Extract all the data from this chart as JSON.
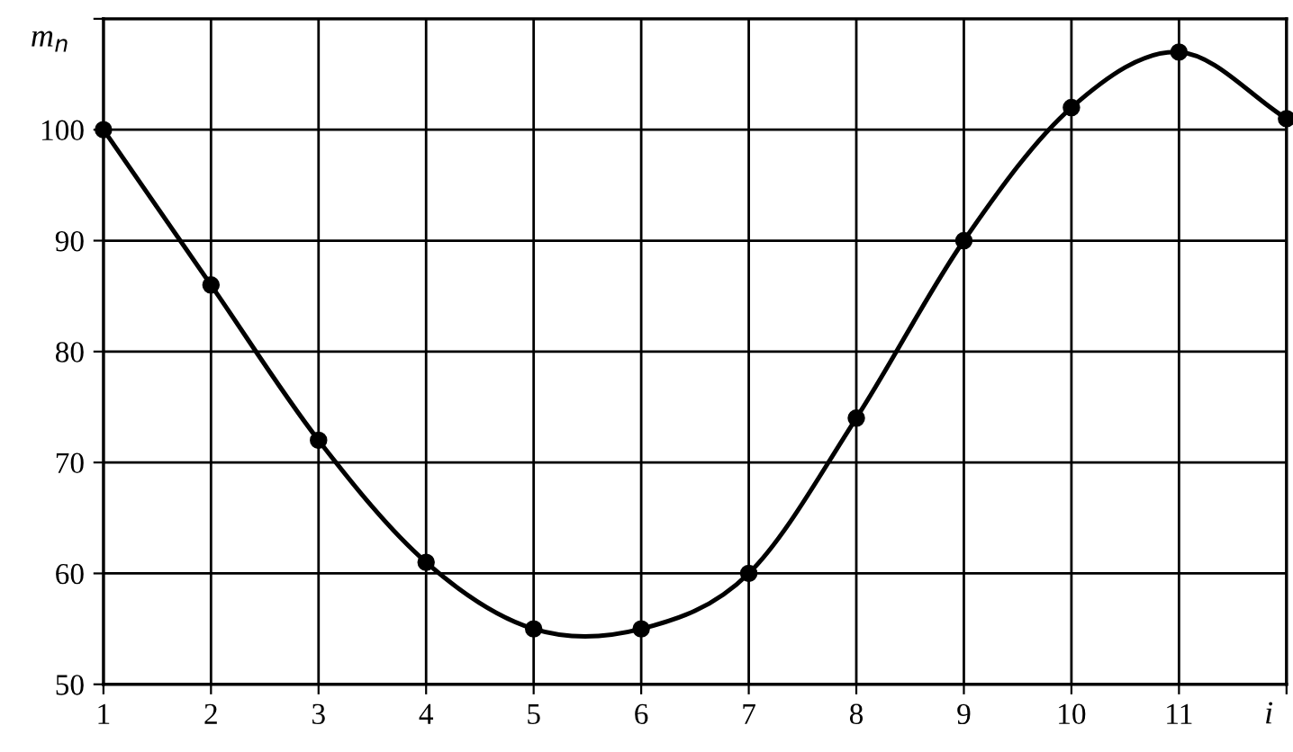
{
  "chart_data": {
    "type": "line",
    "xlabel": "i",
    "ylabel": "m$_{n}$",
    "x": [
      1,
      2,
      3,
      4,
      5,
      6,
      7,
      8,
      9,
      10,
      11,
      12
    ],
    "series": [
      {
        "color": "#000000",
        "values": [
          100,
          86,
          72,
          61,
          55,
          55,
          60,
          74,
          90,
          102,
          107,
          101
        ]
      }
    ],
    "xlim": [
      1,
      12
    ],
    "ylim": [
      50,
      110
    ],
    "xticks": [
      1,
      2,
      3,
      4,
      5,
      6,
      7,
      8,
      9,
      10,
      11,
      {
        "value": 12,
        "label": null
      }
    ],
    "yticks": [
      50,
      60,
      70,
      80,
      90,
      100,
      {
        "value": 110,
        "label": null
      }
    ],
    "grid": true,
    "marker": "circle",
    "line_style": "solid",
    "legend": false
  }
}
